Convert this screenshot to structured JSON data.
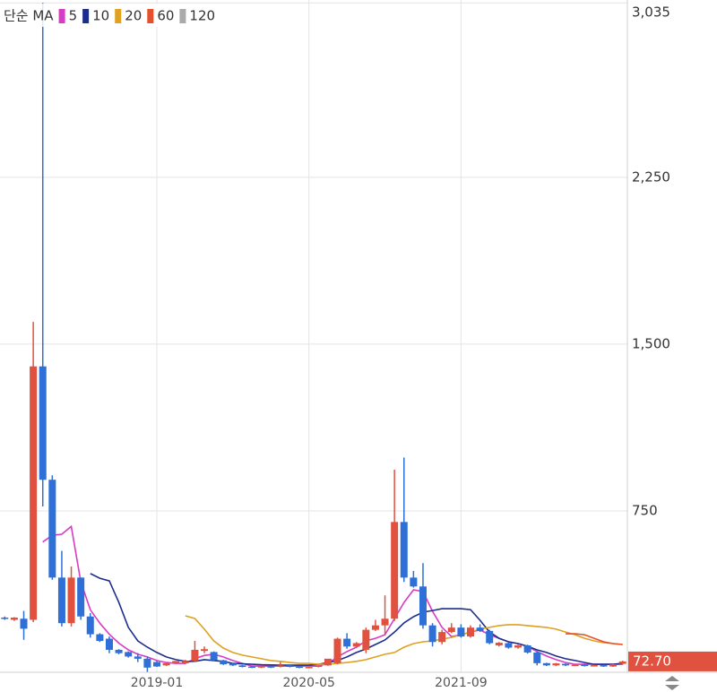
{
  "chart_data": {
    "type": "candlestick",
    "legend_title": "단순 MA",
    "categories": [
      null,
      null,
      null,
      null,
      null,
      null,
      null,
      null,
      null,
      null,
      null,
      null,
      null,
      null,
      null,
      null,
      "2019-01",
      null,
      null,
      null,
      null,
      null,
      null,
      null,
      null,
      null,
      null,
      null,
      null,
      null,
      null,
      null,
      "2020-05",
      null,
      null,
      null,
      null,
      null,
      null,
      null,
      null,
      null,
      null,
      null,
      null,
      null,
      null,
      null,
      "2021-09",
      null,
      null,
      null,
      null,
      null,
      null,
      null,
      null,
      null,
      null,
      null,
      null,
      null,
      null,
      null,
      null,
      null
    ],
    "open": [
      270,
      260,
      265,
      260,
      1400,
      890,
      450,
      245,
      450,
      275,
      195,
      175,
      125,
      115,
      95,
      85,
      70,
      55,
      65,
      65,
      75,
      120,
      115,
      78,
      64,
      55,
      50,
      45,
      52,
      48,
      55,
      50,
      44,
      48,
      55,
      65,
      175,
      140,
      125,
      215,
      235,
      265,
      700,
      450,
      410,
      235,
      160,
      205,
      225,
      185,
      225,
      210,
      145,
      155,
      135,
      145,
      113,
      65,
      55,
      62,
      55,
      58,
      52,
      56,
      50,
      62
    ],
    "high": [
      275,
      272,
      300,
      1600,
      3035,
      910,
      570,
      500,
      450,
      290,
      200,
      185,
      128,
      118,
      110,
      95,
      75,
      62,
      70,
      80,
      165,
      140,
      118,
      80,
      66,
      57,
      52,
      54,
      54,
      70,
      57,
      52,
      48,
      52,
      58,
      180,
      200,
      160,
      225,
      260,
      370,
      935,
      990,
      480,
      515,
      245,
      215,
      245,
      240,
      235,
      240,
      215,
      160,
      158,
      148,
      148,
      118,
      67,
      66,
      64,
      60,
      60,
      58,
      58,
      62,
      76
    ],
    "low": [
      260,
      255,
      170,
      250,
      770,
      440,
      230,
      230,
      260,
      180,
      160,
      110,
      105,
      90,
      70,
      25,
      48,
      52,
      62,
      62,
      70,
      110,
      75,
      57,
      52,
      46,
      43,
      43,
      43,
      46,
      46,
      42,
      42,
      46,
      53,
      60,
      130,
      136,
      110,
      210,
      190,
      255,
      430,
      405,
      220,
      140,
      150,
      200,
      180,
      180,
      205,
      150,
      140,
      130,
      130,
      108,
      55,
      52,
      52,
      52,
      52,
      50,
      50,
      48,
      48,
      58
    ],
    "close": [
      265,
      270,
      220,
      1400,
      890,
      450,
      245,
      450,
      275,
      195,
      165,
      125,
      110,
      95,
      85,
      45,
      50,
      65,
      75,
      75,
      125,
      128,
      78,
      60,
      55,
      48,
      45,
      52,
      45,
      55,
      48,
      44,
      48,
      55,
      85,
      175,
      140,
      155,
      215,
      235,
      265,
      700,
      450,
      410,
      235,
      160,
      205,
      225,
      185,
      225,
      210,
      155,
      157,
      135,
      145,
      113,
      65,
      55,
      64,
      55,
      58,
      52,
      56,
      50,
      60,
      72.7
    ],
    "up_color": "#e0523f",
    "down_color": "#2e6fd8",
    "series": [
      {
        "name": "5",
        "color": "#d63cc4",
        "values": [
          null,
          null,
          null,
          null,
          610,
          640,
          645,
          680,
          430,
          305,
          245,
          195,
          155,
          125,
          105,
          93,
          77,
          68,
          64,
          64,
          85,
          100,
          105,
          93,
          77,
          64,
          52,
          52,
          52,
          52,
          52,
          52,
          52,
          52,
          64,
          93,
          117,
          137,
          165,
          177,
          193,
          266,
          338,
          395,
          387,
          298,
          226,
          185,
          193,
          205,
          214,
          193,
          177,
          161,
          153,
          141,
          117,
          97,
          81,
          68,
          60,
          60,
          60,
          60,
          60,
          60
        ]
      },
      {
        "name": "10",
        "color": "#1c2e8c",
        "values": [
          null,
          null,
          null,
          null,
          null,
          null,
          null,
          null,
          null,
          468,
          447,
          435,
          338,
          226,
          165,
          137,
          113,
          93,
          81,
          73,
          73,
          81,
          77,
          73,
          64,
          62,
          60,
          58,
          57,
          56,
          56,
          56,
          56,
          60,
          68,
          77,
          93,
          113,
          129,
          149,
          169,
          205,
          246,
          274,
          294,
          302,
          310,
          310,
          310,
          306,
          258,
          205,
          177,
          161,
          153,
          141,
          125,
          113,
          97,
          85,
          77,
          68,
          60,
          60,
          60,
          64
        ]
      },
      {
        "name": "20",
        "color": "#e0a020",
        "values": [
          null,
          null,
          null,
          null,
          null,
          null,
          null,
          null,
          null,
          null,
          null,
          null,
          null,
          null,
          null,
          null,
          null,
          null,
          null,
          278,
          266,
          218,
          165,
          133,
          113,
          101,
          93,
          85,
          77,
          73,
          68,
          64,
          64,
          60,
          60,
          64,
          68,
          73,
          81,
          93,
          105,
          113,
          137,
          153,
          161,
          165,
          173,
          181,
          193,
          205,
          218,
          226,
          234,
          238,
          238,
          234,
          230,
          226,
          218,
          205,
          193,
          177,
          165,
          157,
          153,
          149
        ]
      },
      {
        "name": "60",
        "color": "#e8502a",
        "values": [
          null,
          null,
          null,
          null,
          null,
          null,
          null,
          null,
          null,
          null,
          null,
          null,
          null,
          null,
          null,
          null,
          null,
          null,
          null,
          null,
          null,
          null,
          null,
          null,
          null,
          null,
          null,
          null,
          null,
          null,
          null,
          null,
          null,
          null,
          null,
          null,
          null,
          null,
          null,
          null,
          null,
          null,
          null,
          null,
          null,
          null,
          null,
          null,
          null,
          null,
          null,
          null,
          null,
          null,
          null,
          null,
          null,
          null,
          null,
          197,
          197,
          193,
          177,
          161,
          153,
          149
        ]
      },
      {
        "name": "120",
        "color": "#aaaaaa",
        "values": [
          null,
          null,
          null,
          null,
          null,
          null,
          null,
          null,
          null,
          null,
          null,
          null,
          null,
          null,
          null,
          null,
          null,
          null,
          null,
          null,
          null,
          null,
          null,
          null,
          null,
          null,
          null,
          null,
          null,
          null,
          null,
          null,
          null,
          null,
          null,
          null,
          null,
          null,
          null,
          null,
          null,
          null,
          null,
          null,
          null,
          null,
          null,
          null,
          null,
          null,
          null,
          null,
          null,
          null,
          null,
          null,
          null,
          null,
          null,
          null,
          null,
          null,
          null,
          null,
          null,
          null
        ]
      }
    ],
    "ylim": [
      24,
      3048
    ],
    "yticks": [
      {
        "value": 750,
        "label": "750"
      },
      {
        "value": 1500,
        "label": "1,500"
      },
      {
        "value": 2250,
        "label": "2,250"
      },
      {
        "value": 3035,
        "label": "3,035"
      }
    ],
    "grid": true,
    "current_price": {
      "value": 72.7,
      "label": "72.70"
    }
  }
}
